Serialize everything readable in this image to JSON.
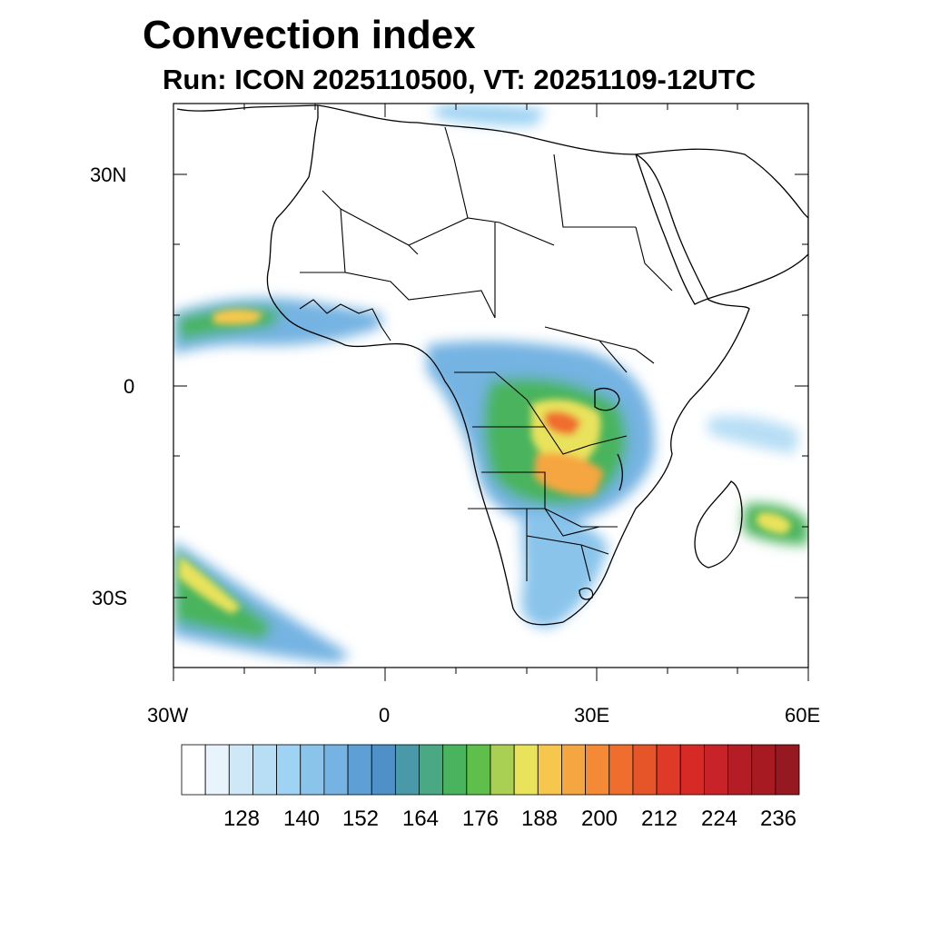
{
  "map": {
    "title": "Convection index",
    "subtitle": "Run: ICON 2025110500,  VT: 20251109-12UTC",
    "lat_labels": [
      "30N",
      "0",
      "30S"
    ],
    "lon_labels": [
      "30W",
      "0",
      "30E",
      "60E"
    ],
    "extent": {
      "lon_min": -30,
      "lon_max": 60,
      "lat_min": -40,
      "lat_max": 40
    },
    "variable": "Convection index"
  },
  "colorbar": {
    "colors": [
      "#ffffff",
      "#e8f4fb",
      "#cfe8f7",
      "#b7def5",
      "#9fd3f3",
      "#8ac4eb",
      "#74b3e2",
      "#5e9fd5",
      "#4f90c8",
      "#4a99a8",
      "#4ba884",
      "#49b45d",
      "#5ebf4b",
      "#a9cf53",
      "#e9e25b",
      "#f7c74d",
      "#f6a640",
      "#f48a35",
      "#ef6d2d",
      "#e65429",
      "#df3a27",
      "#d72a27",
      "#c9232a",
      "#b41d26",
      "#a81a22",
      "#961820"
    ],
    "labels": [
      "128",
      "140",
      "152",
      "164",
      "176",
      "188",
      "200",
      "212",
      "224",
      "236"
    ]
  }
}
